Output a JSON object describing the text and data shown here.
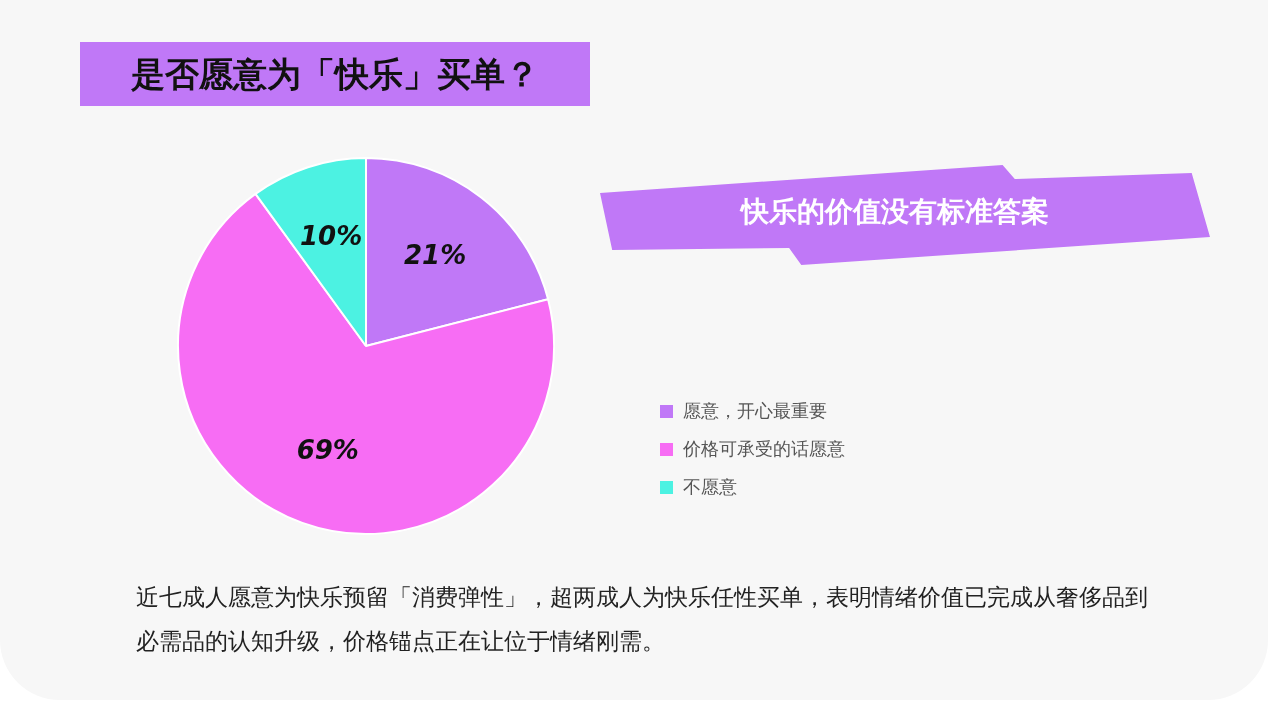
{
  "chart_data": {
    "type": "pie",
    "title": "是否愿意为「快乐」买单？",
    "subtitle": "快乐的价值没有标准答案",
    "categories": [
      "愿意，开心最重要",
      "价格可承受的话愿意",
      "不愿意"
    ],
    "values": [
      21,
      69,
      10
    ],
    "colors": [
      "#c078f7",
      "#f76df4",
      "#4cf2e2"
    ],
    "value_labels": [
      "21%",
      "69%",
      "10%"
    ],
    "legend": "right",
    "annotations": [
      "近七成人愿意为快乐预留「消费弹性」，超两成人为快乐任性买单，表明情绪价值已完成从奢侈品到必需品的认知升级，价格锚点正在让位于情绪刚需。"
    ]
  }
}
